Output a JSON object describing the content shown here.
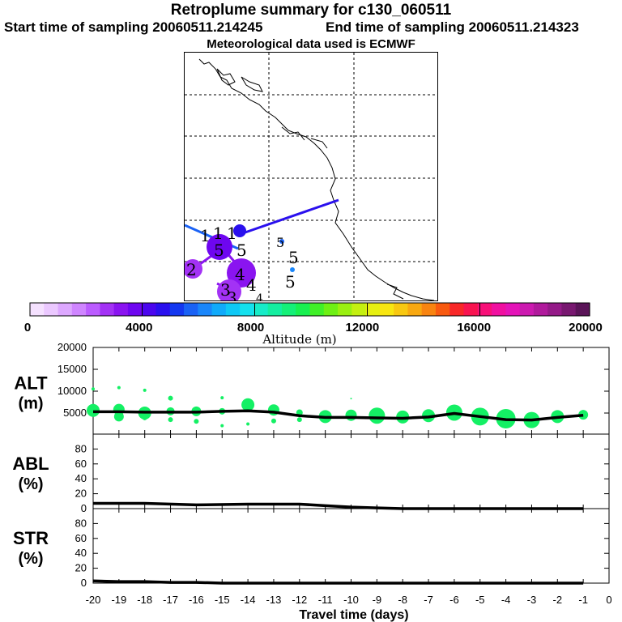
{
  "header": {
    "title": "Retroplume summary for c130_060511",
    "start": "Start time of sampling 20060511.214245",
    "end": "End time of sampling 20060511.214323",
    "met": "Meteorological data used is ECMWF"
  },
  "colorbar": {
    "labels": [
      "0",
      "4000",
      "8000",
      "12000",
      "16000",
      "20000"
    ],
    "title": "Altitude (m)",
    "colors": [
      "#f5e1ff",
      "#ebc8ff",
      "#dda8ff",
      "#cf85ff",
      "#bb5cff",
      "#a332f5",
      "#8a14f0",
      "#6e06f0",
      "#4b06ee",
      "#2a10ee",
      "#1438f0",
      "#1a62f5",
      "#1a86fa",
      "#10aafa",
      "#0ec8f5",
      "#14e1ee",
      "#17ecc8",
      "#14eea0",
      "#14f078",
      "#18f050",
      "#40f028",
      "#6ef014",
      "#9af010",
      "#c4f010",
      "#e6f010",
      "#f8e610",
      "#f8c810",
      "#f8a810",
      "#f88410",
      "#f85a10",
      "#f82828",
      "#f81450",
      "#f81078",
      "#f010a0",
      "#e414b8",
      "#cc1ab0",
      "#b01a9c",
      "#941a88",
      "#781870",
      "#5a1458"
    ]
  },
  "map": {
    "trajectory_labels": [
      "1",
      "1",
      "1",
      "2",
      "3",
      "3",
      "4",
      "4",
      "4",
      "5",
      "5",
      "5",
      "5",
      "5"
    ]
  },
  "chart_data": {
    "type": "line",
    "xlabel": "Travel time (days)",
    "x_ticks": [
      -20,
      -19,
      -18,
      -17,
      -16,
      -15,
      -14,
      -13,
      -12,
      -11,
      -10,
      -9,
      -8,
      -7,
      -6,
      -5,
      -4,
      -3,
      -2,
      -1,
      0
    ],
    "x_tick_labels": [
      "-20",
      "-19",
      "-18",
      "-17",
      "-16",
      "-15",
      "-14",
      "-13",
      "-12",
      "-11",
      "-10",
      "-9",
      "-8",
      "-7",
      "-6",
      "-5",
      "-4",
      "-3",
      "-2",
      "-1",
      "0"
    ],
    "xlim": [
      -20,
      0
    ],
    "panels": [
      {
        "name": "alt",
        "ylabel_line1": "ALT",
        "ylabel_line2": "(m)",
        "ylim": [
          0,
          20000
        ],
        "y_ticks": [
          5000,
          10000,
          15000,
          20000
        ],
        "y_tick_labels": [
          "5000",
          "10000",
          "15000",
          "20000"
        ],
        "line": {
          "x": [
            -20,
            -19,
            -18,
            -17,
            -16,
            -15,
            -14,
            -13,
            -12,
            -11,
            -10,
            -9,
            -8,
            -7,
            -6,
            -5,
            -4,
            -3,
            -2,
            -1
          ],
          "y": [
            5300,
            5300,
            5200,
            5200,
            5200,
            5400,
            5500,
            5200,
            4400,
            4000,
            4000,
            3900,
            3800,
            4100,
            4900,
            4200,
            3500,
            3400,
            4000,
            4500
          ]
        },
        "dots": {
          "x": [
            -20,
            -20,
            -19,
            -19,
            -19,
            -18,
            -18,
            -18,
            -17,
            -17,
            -17,
            -16,
            -16,
            -15,
            -15,
            -15,
            -14,
            -14,
            -13,
            -13,
            -12,
            -12,
            -11,
            -10,
            -10,
            -9,
            -8,
            -7,
            -6,
            -5,
            -4,
            -3,
            -2,
            -1
          ],
          "y": [
            5600,
            10500,
            5800,
            4200,
            10800,
            5000,
            3900,
            10200,
            5400,
            3500,
            8400,
            5400,
            3100,
            5400,
            2100,
            8500,
            6900,
            2500,
            5700,
            3200,
            5100,
            3500,
            4200,
            4500,
            8300,
            4400,
            4100,
            4400,
            5100,
            4200,
            3700,
            3400,
            4200,
            4600
          ],
          "size": [
            8,
            2,
            7,
            6,
            2,
            8,
            3,
            2,
            5,
            3,
            3,
            6,
            3,
            4,
            2,
            2,
            8,
            2,
            7,
            3,
            4,
            3,
            8,
            7,
            1,
            10,
            8,
            8,
            10,
            11,
            12,
            10,
            8,
            6
          ]
        }
      },
      {
        "name": "abl",
        "ylabel_line1": "ABL",
        "ylabel_line2": "(%)",
        "ylim": [
          0,
          100
        ],
        "y_ticks": [
          0,
          20,
          40,
          60,
          80
        ],
        "y_tick_labels": [
          "0",
          "20",
          "40",
          "60",
          "80"
        ],
        "line": {
          "x": [
            -20,
            -18,
            -16,
            -14,
            -12,
            -11,
            -10,
            -9,
            -8,
            -1
          ],
          "y": [
            7,
            7,
            5,
            6,
            6,
            4,
            2,
            1,
            0,
            0
          ]
        }
      },
      {
        "name": "str",
        "ylabel_line1": "STR",
        "ylabel_line2": "(%)",
        "ylim": [
          0,
          100
        ],
        "y_ticks": [
          0,
          20,
          40,
          60,
          80
        ],
        "y_tick_labels": [
          "0",
          "20",
          "40",
          "60",
          "80"
        ],
        "line": {
          "x": [
            -20,
            -19,
            -18,
            -17,
            -16,
            -15,
            -14,
            -1
          ],
          "y": [
            3,
            2,
            2,
            1,
            1,
            0,
            0,
            0
          ]
        }
      }
    ]
  }
}
